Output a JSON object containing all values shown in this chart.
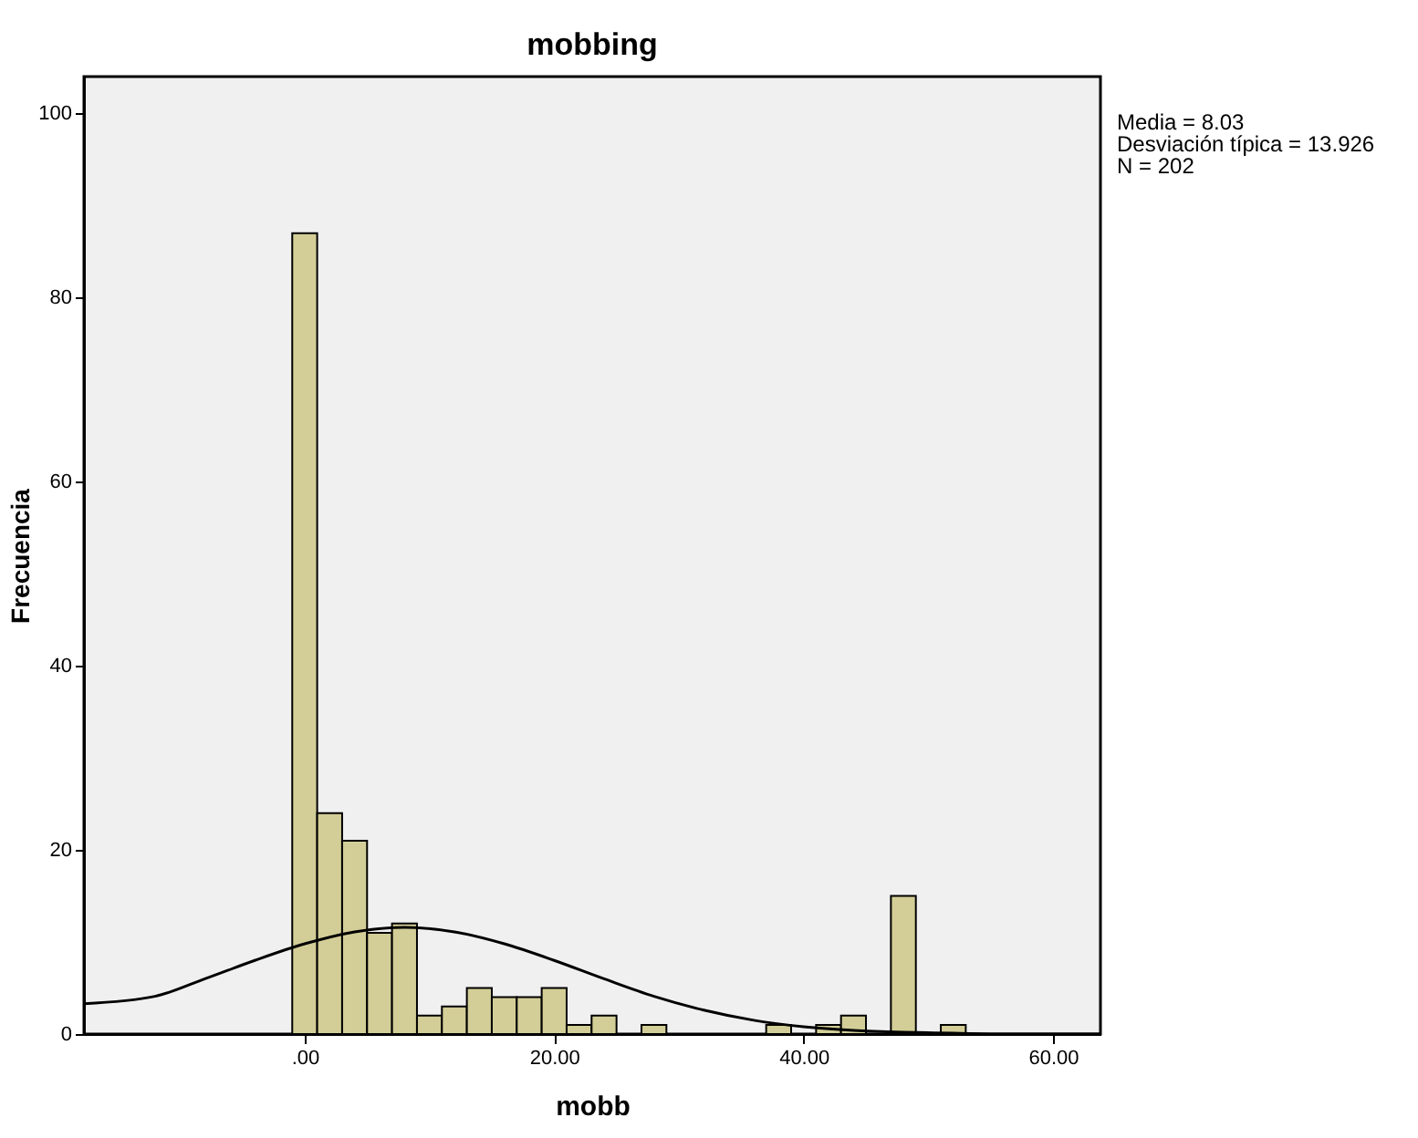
{
  "chart_data": {
    "type": "histogram",
    "title": "mobbing",
    "xlabel": "mobb",
    "ylabel": "Frecuencia",
    "bins": [
      -1,
      1,
      3,
      5,
      7,
      9,
      11,
      13,
      15,
      17,
      19,
      21,
      23,
      25,
      27,
      29,
      31,
      33,
      35,
      37,
      39,
      41,
      43,
      45,
      47,
      49,
      51,
      53
    ],
    "values": [
      87,
      24,
      21,
      11,
      12,
      2,
      3,
      5,
      4,
      4,
      5,
      1,
      2,
      0,
      1,
      0,
      0,
      0,
      0,
      1,
      0,
      1,
      2,
      0,
      15,
      0,
      1
    ],
    "color": "#d3ce97",
    "series": [
      {
        "type": "line",
        "color": "#000000",
        "x": [
          -17.7,
          -12,
          -8,
          -4,
          0,
          4,
          8,
          12,
          16,
          20,
          24,
          28,
          32,
          36,
          40,
          44,
          48,
          52,
          56,
          60,
          63.8
        ],
        "values": [
          3.3,
          4.1,
          6.0,
          8.0,
          9.8,
          11.1,
          11.6,
          11.1,
          9.8,
          8.0,
          6.0,
          4.1,
          2.6,
          1.5,
          0.8,
          0.4,
          0.2,
          0.1,
          0.0,
          0.0,
          0.0
        ]
      }
    ],
    "xlim": [
      -17.7,
      63.8
    ],
    "xticks": [
      {
        "value": 0,
        "label": ".00"
      },
      {
        "value": 20,
        "label": "20.00"
      },
      {
        "value": 40,
        "label": "40.00"
      },
      {
        "value": 60,
        "label": "60.00"
      }
    ],
    "ylim": [
      0,
      104
    ],
    "yticks": [
      0,
      20,
      40,
      60,
      80,
      100
    ],
    "grid": false,
    "annotations": [
      "Media = 8.03",
      "Desviación típica = 13.926",
      "N = 202"
    ]
  }
}
